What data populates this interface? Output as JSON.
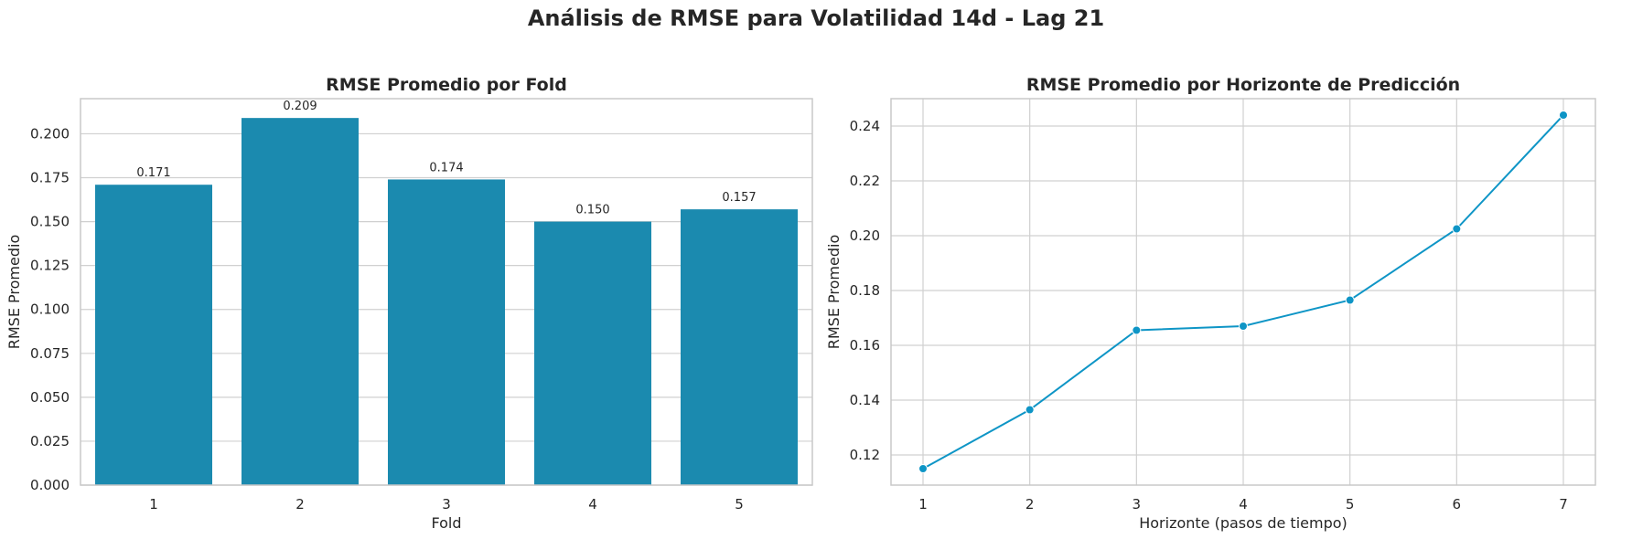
{
  "figure_title": "Análisis de RMSE para Volatilidad 14d - Lag 21",
  "colors": {
    "bar": "#1b8aaf",
    "line": "#0e95c6",
    "grid": "#d0d0d0",
    "spine": "#c8c8c8"
  },
  "chart_data": [
    {
      "type": "bar",
      "title": "RMSE Promedio por Fold",
      "xlabel": "Fold",
      "ylabel": "RMSE Promedio",
      "categories": [
        "1",
        "2",
        "3",
        "4",
        "5"
      ],
      "values": [
        0.171,
        0.209,
        0.174,
        0.15,
        0.157
      ],
      "data_labels": [
        "0.171",
        "0.209",
        "0.174",
        "0.150",
        "0.157"
      ],
      "ylim": [
        0,
        0.22
      ],
      "yticks": [
        "0.000",
        "0.025",
        "0.050",
        "0.075",
        "0.100",
        "0.125",
        "0.150",
        "0.175",
        "0.200"
      ],
      "grid": "horizontal"
    },
    {
      "type": "line",
      "title": "RMSE Promedio por Horizonte de Predicción",
      "xlabel": "Horizonte (pasos de tiempo)",
      "ylabel": "RMSE Promedio",
      "x": [
        1,
        2,
        3,
        4,
        5,
        6,
        7
      ],
      "values": [
        0.115,
        0.1365,
        0.1655,
        0.167,
        0.1765,
        0.2025,
        0.244
      ],
      "xlim": [
        0.7,
        7.3
      ],
      "ylim": [
        0.109,
        0.25
      ],
      "xticks": [
        "1",
        "2",
        "3",
        "4",
        "5",
        "6",
        "7"
      ],
      "yticks": [
        "0.12",
        "0.14",
        "0.16",
        "0.18",
        "0.20",
        "0.22",
        "0.24"
      ],
      "markers": true,
      "grid": "both"
    }
  ]
}
